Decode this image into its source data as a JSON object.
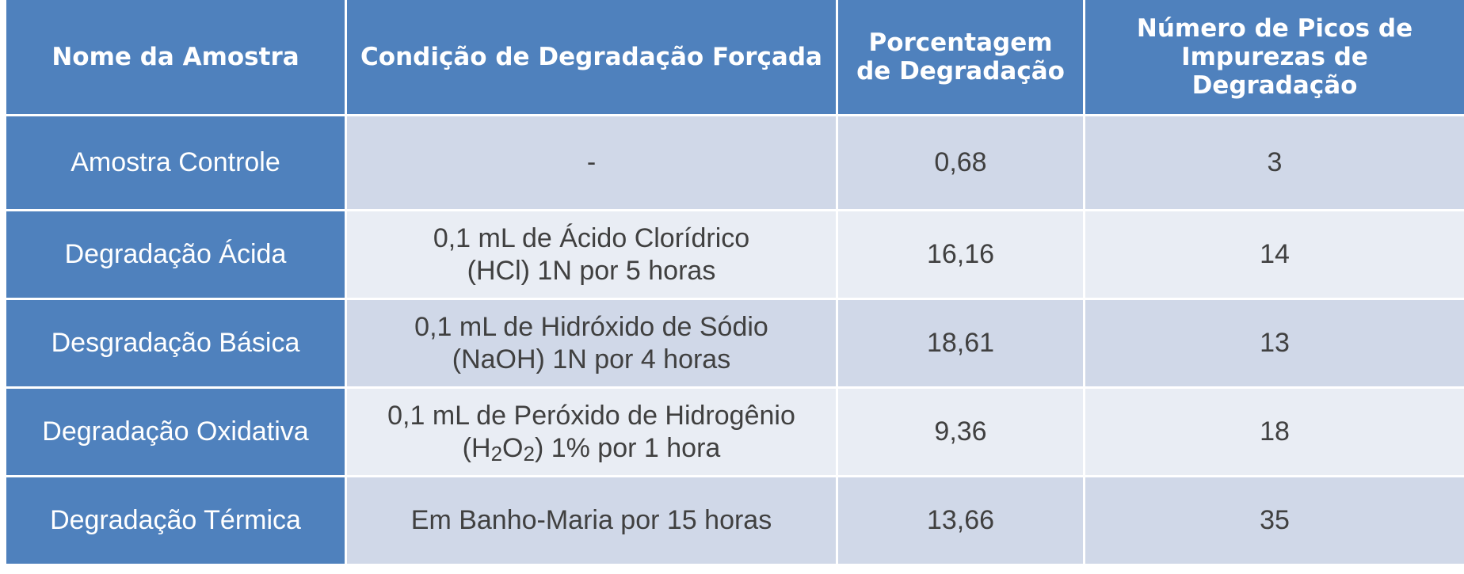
{
  "table": {
    "headers": [
      "Nome da Amostra",
      "Condição de Degradação Forçada",
      "Porcentagem de Degradação",
      "Número de Picos de Impurezas de Degradação"
    ],
    "rows": [
      {
        "name": "Amostra Controle",
        "condition": "-",
        "percent": "0,68",
        "peaks": "3"
      },
      {
        "name": "Degradação Ácida",
        "condition_line1": "0,1 mL de Ácido Clorídrico",
        "condition_line2": "(HCl) 1N por 5 horas",
        "percent": "16,16",
        "peaks": "14"
      },
      {
        "name": "Desgradação Básica",
        "condition_line1": "0,1 mL de Hidróxido de Sódio",
        "condition_line2": "(NaOH) 1N por 4 horas",
        "percent": "18,61",
        "peaks": "13"
      },
      {
        "name": "Degradação Oxidativa",
        "condition_line1": "0,1 mL de Peróxido de Hidrogênio",
        "condition_line2_pre": "(H",
        "condition_line2_sub1": "2",
        "condition_line2_mid": "O",
        "condition_line2_sub2": "2",
        "condition_line2_post": ") 1% por 1 hora",
        "percent": "9,36",
        "peaks": "18"
      },
      {
        "name": "Degradação Térmica",
        "condition": "Em Banho-Maria por 15 horas",
        "percent": "13,66",
        "peaks": "35"
      }
    ]
  }
}
